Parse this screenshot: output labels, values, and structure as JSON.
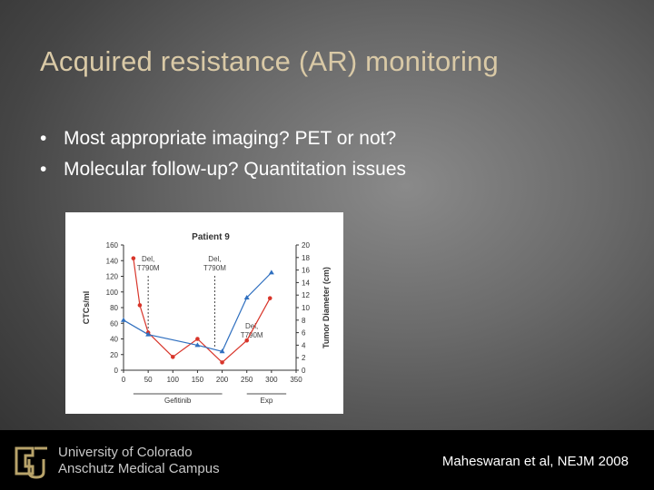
{
  "slide": {
    "title": "Acquired resistance (AR) monitoring",
    "bullets": [
      "Most appropriate imaging? PET or not?",
      "Molecular follow-up? Quantitation issues"
    ]
  },
  "figure": {
    "chart_data": {
      "type": "line",
      "title": "Patient 9",
      "x_ticks": [
        "0",
        "50",
        "100",
        "150",
        "200",
        "250",
        "300",
        "350"
      ],
      "left_axis": {
        "label": "CTCs/ml",
        "ticks": [
          "0",
          "20",
          "40",
          "60",
          "80",
          "100",
          "120",
          "140",
          "160"
        ],
        "range": [
          0,
          160
        ]
      },
      "right_axis": {
        "label": "Tumor Diameter (cm)",
        "ticks": [
          "0",
          "2",
          "4",
          "6",
          "8",
          "10",
          "12",
          "14",
          "16",
          "18",
          "20"
        ],
        "range": [
          0,
          20
        ]
      },
      "series": [
        {
          "axis": "left",
          "color": "#d8352a",
          "x": [
            20,
            33,
            50,
            100,
            150,
            200,
            250,
            297
          ],
          "y": [
            143,
            83,
            48,
            17,
            40,
            10,
            38,
            92
          ]
        },
        {
          "axis": "right",
          "color": "#2f6fbf",
          "x": [
            0,
            50,
            150,
            200,
            250,
            300
          ],
          "y": [
            8,
            5.7,
            4,
            3,
            11.6,
            15.6
          ]
        }
      ],
      "annotations": [
        {
          "text": "Del, T790M",
          "x": 50
        },
        {
          "text": "Del, T790M",
          "x": 185
        },
        {
          "text": "Del, T790M",
          "x": 260
        }
      ],
      "periods": [
        "Gefitinib",
        "Exp"
      ],
      "colors": {
        "ctc": "#d8352a",
        "tumor": "#2f6fbf"
      }
    }
  },
  "footer": {
    "university_line1": "University of Colorado",
    "university_line2": "Anschutz Medical Campus",
    "citation": "Maheswaran et al, NEJM 2008"
  }
}
